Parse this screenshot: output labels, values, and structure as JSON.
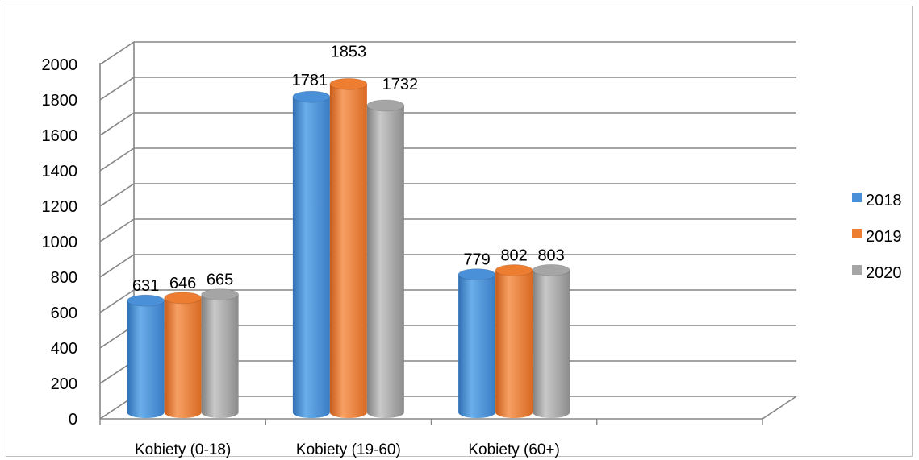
{
  "chart_data": {
    "type": "bar",
    "title": "",
    "xlabel": "",
    "ylabel": "",
    "categories": [
      "Kobiety (0-18)",
      "Kobiety (19-60)",
      "Kobiety (60+)"
    ],
    "series": [
      {
        "name": "2018",
        "values": [
          631,
          1781,
          779
        ],
        "color": "#4A90D9"
      },
      {
        "name": "2019",
        "values": [
          646,
          1853,
          802
        ],
        "color": "#ED7D31"
      },
      {
        "name": "2020",
        "values": [
          665,
          1732,
          803
        ],
        "color": "#A5A5A5"
      }
    ],
    "y_ticks": [
      0,
      200,
      400,
      600,
      800,
      1000,
      1200,
      1400,
      1600,
      1800,
      2000
    ],
    "ylim": [
      0,
      2000
    ],
    "grid": true,
    "legend_position": "right",
    "style": "3d-cylinder"
  }
}
